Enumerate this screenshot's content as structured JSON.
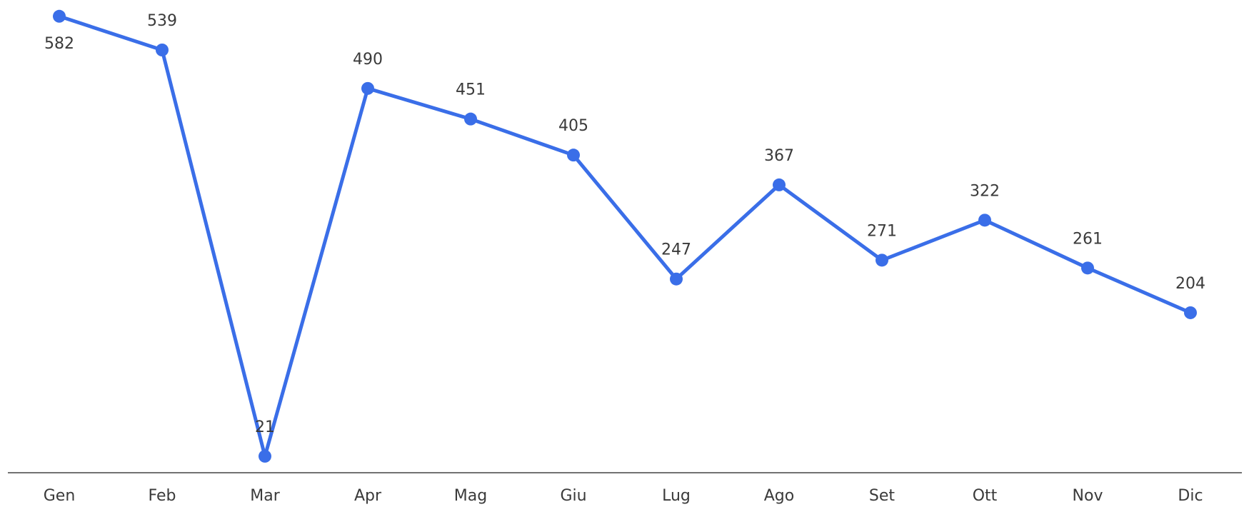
{
  "chart_data": {
    "type": "line",
    "categories": [
      "Gen",
      "Feb",
      "Mar",
      "Apr",
      "Mag",
      "Giu",
      "Lug",
      "Ago",
      "Set",
      "Ott",
      "Nov",
      "Dic"
    ],
    "values": [
      582,
      539,
      21,
      490,
      451,
      405,
      247,
      367,
      271,
      322,
      261,
      204
    ],
    "color": "#3a6ee8",
    "ylim": [
      0,
      600
    ]
  }
}
